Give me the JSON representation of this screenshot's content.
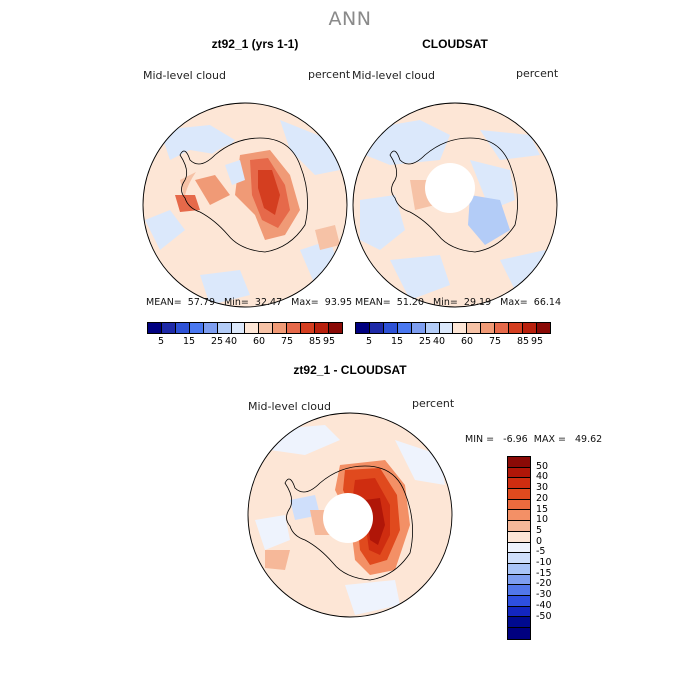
{
  "title": "ANN",
  "panels": [
    {
      "title": "zt92_1 (yrs 1-1)",
      "variable": "Mid-level cloud",
      "units": "percent",
      "stats": "MEAN=  57.79   Min=  32.47   Max=  93.95"
    },
    {
      "title": "CLOUDSAT",
      "variable": "Mid-level cloud",
      "units": "percent",
      "stats": "MEAN=  51.20   Min=  29.19   Max=  66.14"
    },
    {
      "title": "zt92_1 - CLOUDSAT",
      "variable": "Mid-level cloud",
      "units": "percent",
      "stats": "MIN =   -6.96  MAX =   49.62"
    }
  ],
  "colorbar_abs": {
    "colors": [
      "#000080",
      "#1e2aa8",
      "#2e52d6",
      "#4a78f0",
      "#7e9ef0",
      "#b3ccf7",
      "#dbe8fb",
      "#fde6d6",
      "#f6c2a6",
      "#f09a76",
      "#e6694a",
      "#d43e20",
      "#b8200d",
      "#8a0a06"
    ],
    "labels": [
      "5",
      "15",
      "25",
      "40",
      "60",
      "75",
      "85",
      "95"
    ]
  },
  "colorbar_diff": {
    "colors": [
      "#8a0a06",
      "#b01608",
      "#cf2d10",
      "#e04a1e",
      "#ec6b3e",
      "#f39066",
      "#f6b899",
      "#fde6d6",
      "#eef3fd",
      "#cfdffb",
      "#a9c4f7",
      "#7e9ef0",
      "#5277ea",
      "#2e4fe0",
      "#1326c0",
      "#000a8f",
      "#000080"
    ],
    "labels": [
      "50",
      "40",
      "30",
      "20",
      "15",
      "10",
      "5",
      "0",
      "-5",
      "-10",
      "-15",
      "-20",
      "-30",
      "-40",
      "-50"
    ]
  }
}
